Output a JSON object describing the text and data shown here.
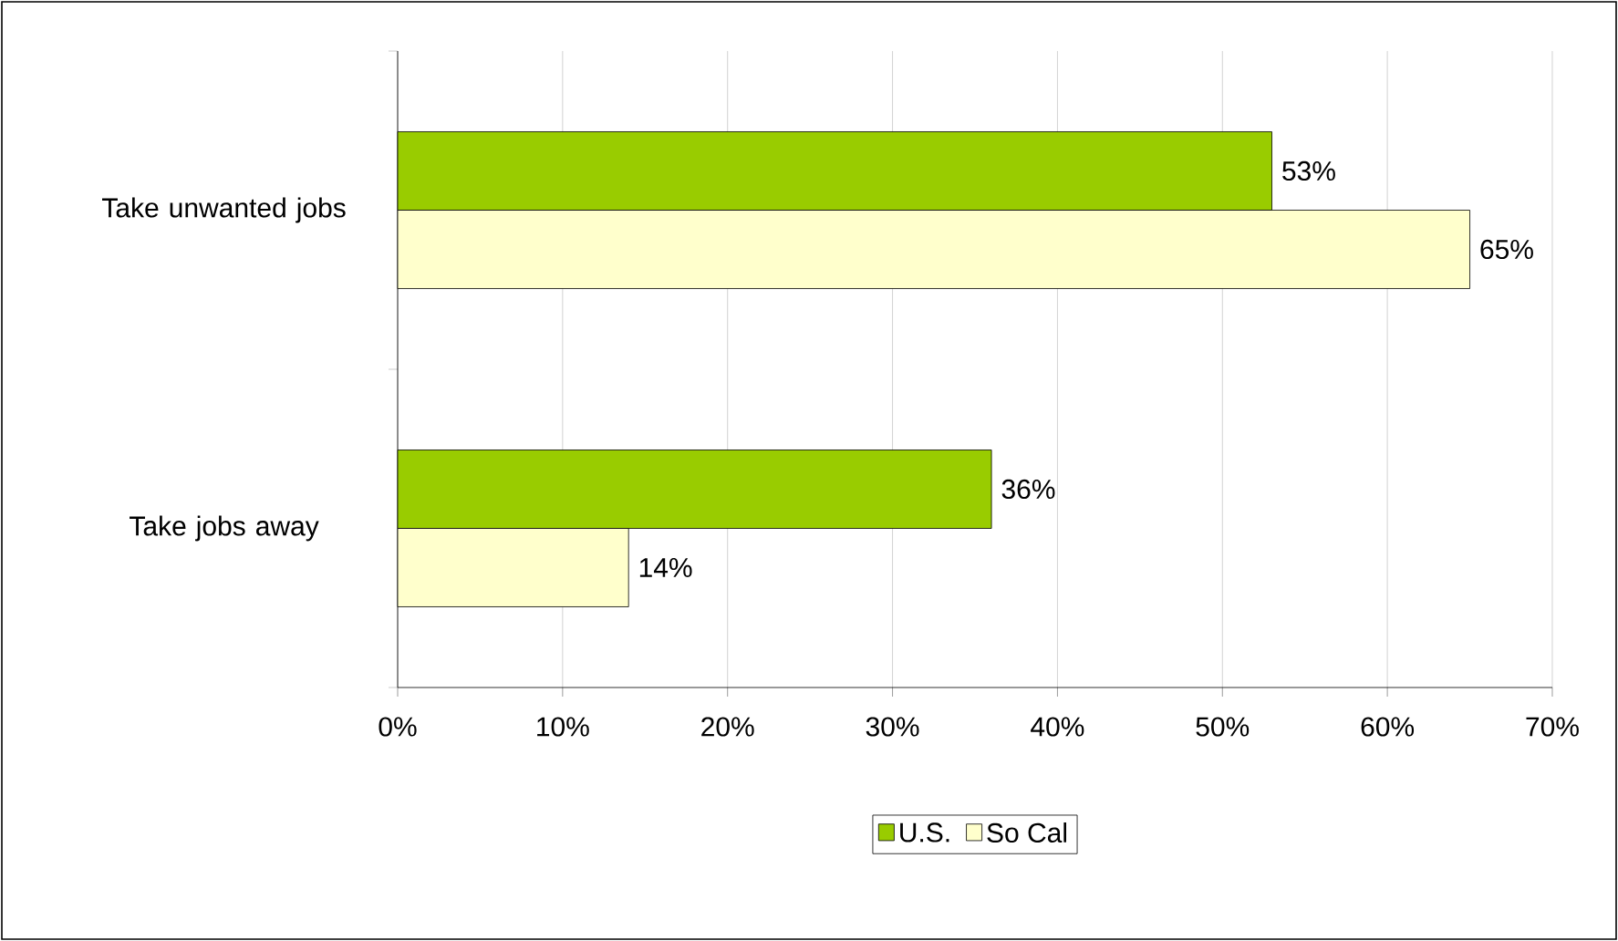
{
  "chart_data": {
    "type": "bar",
    "orientation": "horizontal",
    "categories": [
      "Take unwanted jobs",
      "Take jobs away"
    ],
    "series": [
      {
        "name": "U.S.",
        "color": "#99cc00",
        "values": [
          53,
          36
        ],
        "value_labels": [
          "53%",
          "36%"
        ]
      },
      {
        "name": "So Cal",
        "color": "#ffffcc",
        "values": [
          65,
          14
        ],
        "value_labels": [
          "65%",
          "14%"
        ]
      }
    ],
    "xlim": [
      0,
      70
    ],
    "xticks": [
      {
        "value": 0,
        "label": "0%"
      },
      {
        "value": 10,
        "label": "10%"
      },
      {
        "value": 20,
        "label": "20%"
      },
      {
        "value": 30,
        "label": "30%"
      },
      {
        "value": 40,
        "label": "40%"
      },
      {
        "value": 50,
        "label": "50%"
      },
      {
        "value": 60,
        "label": "60%"
      },
      {
        "value": 70,
        "label": "70%"
      }
    ],
    "grid": "x",
    "legend": "bottom"
  }
}
